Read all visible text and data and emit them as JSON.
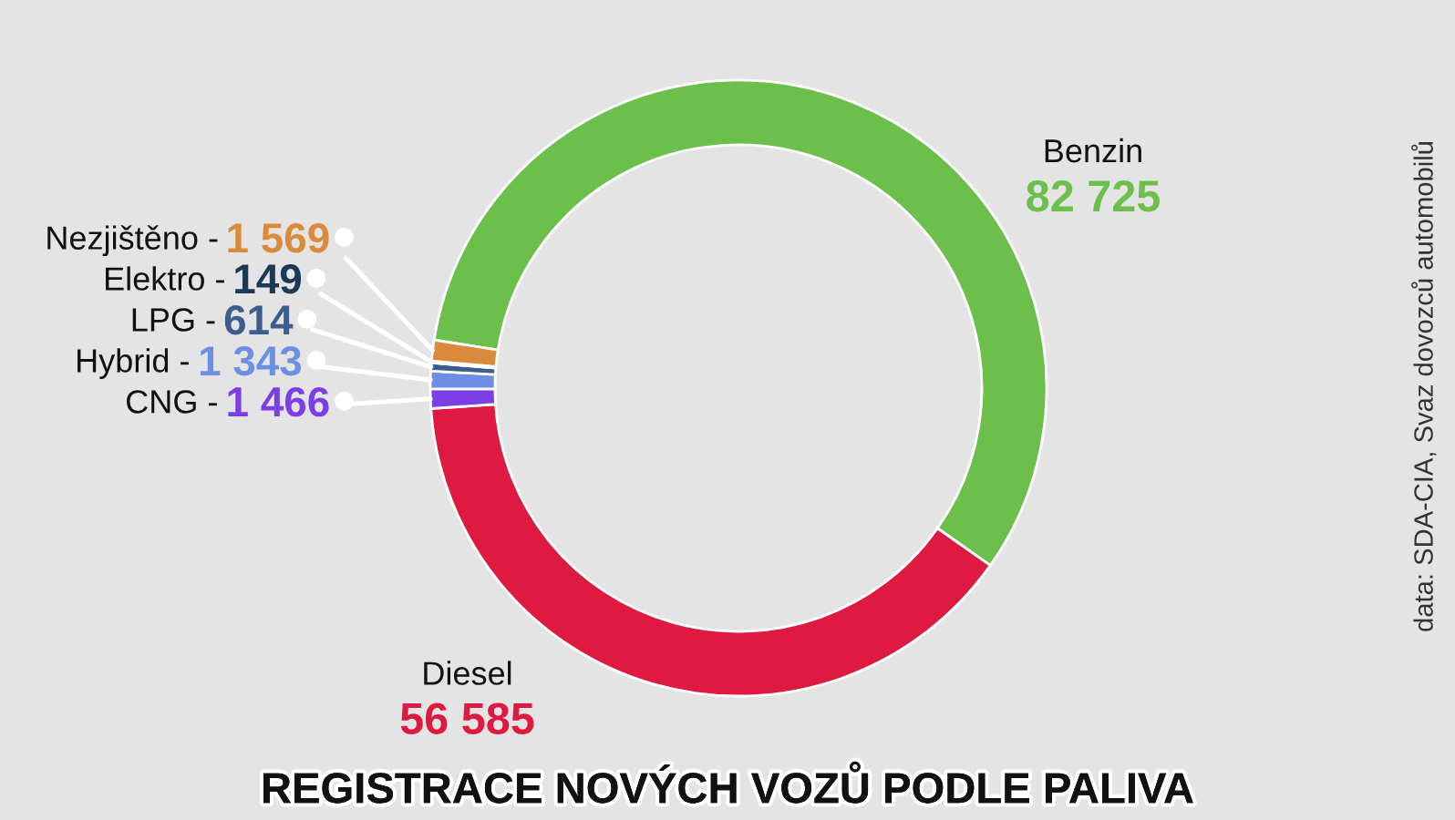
{
  "chart_data": {
    "type": "donut",
    "title": "REGISTRACE NOVÝCH VOZŮ PODLE PALIVA",
    "categories": [
      "Benzin",
      "Diesel",
      "CNG -",
      "Hybrid -",
      "LPG -",
      "Elektro -",
      "Nezjištěno -"
    ],
    "values": [
      82725,
      56585,
      1466,
      1343,
      614,
      149,
      1569
    ],
    "colors": [
      "#6cbf4a",
      "#df1a40",
      "#7b3fe6",
      "#6c8fe3",
      "#3b5e8e",
      "#1c3a57",
      "#d98a3b"
    ],
    "value_labels": [
      "82 725",
      "56 585",
      "1 466",
      "1 343",
      "614",
      "149",
      "1 569"
    ],
    "annotations": [
      "data: SDA-CIA, Svaz dovozců automobilů"
    ]
  }
}
